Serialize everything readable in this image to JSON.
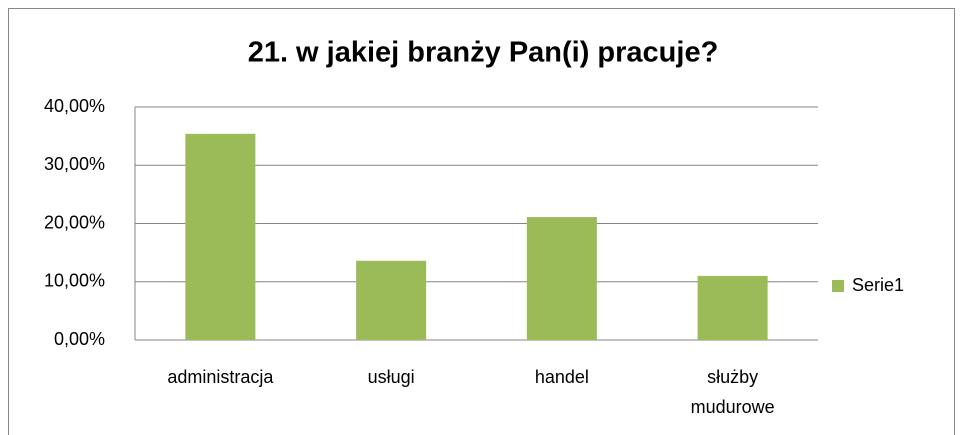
{
  "chart_data": {
    "type": "bar",
    "title": "21. w jakiej branży Pan(i) pracuje?",
    "categories": [
      "administracja",
      "usługi",
      "handel",
      "służby mudurowe"
    ],
    "series": [
      {
        "name": "Serie1",
        "color": "#9bbb59",
        "values": [
          35.4,
          13.6,
          21.1,
          11.0
        ]
      }
    ],
    "ylim": [
      0,
      40
    ],
    "yticks": [
      {
        "value": 0,
        "label": "0,00%"
      },
      {
        "value": 10,
        "label": "10,00%"
      },
      {
        "value": 20,
        "label": "20,00%"
      },
      {
        "value": 30,
        "label": "30,00%"
      },
      {
        "value": 40,
        "label": "40,00%"
      }
    ],
    "grid": true,
    "legend": "right"
  }
}
